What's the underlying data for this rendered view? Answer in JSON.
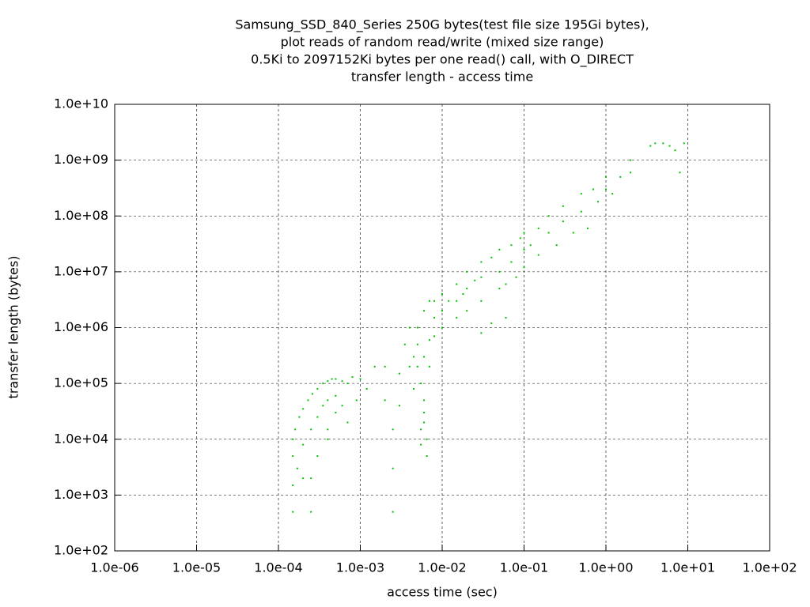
{
  "chart_data": {
    "type": "scatter",
    "title": [
      "Samsung_SSD_840_Series 250G bytes(test file size 195Gi bytes),",
      "plot reads of random read/write (mixed size range)",
      "0.5Ki to 2097152Ki bytes per one read() call, with O_DIRECT",
      "transfer length - access time"
    ],
    "xlabel": "access time (sec)",
    "ylabel": "transfer length (bytes)",
    "xscale": "log",
    "yscale": "log",
    "grid": true,
    "color": "#00c000",
    "xlim": [
      1e-06,
      100
    ],
    "ylim": [
      100,
      10000000000.0
    ],
    "xticks": [
      {
        "value": 1e-06,
        "label": "1.0e-06"
      },
      {
        "value": 1e-05,
        "label": "1.0e-05"
      },
      {
        "value": 0.0001,
        "label": "1.0e-04"
      },
      {
        "value": 0.001,
        "label": "1.0e-03"
      },
      {
        "value": 0.01,
        "label": "1.0e-02"
      },
      {
        "value": 0.1,
        "label": "1.0e-01"
      },
      {
        "value": 1,
        "label": "1.0e+00"
      },
      {
        "value": 10,
        "label": "1.0e+01"
      },
      {
        "value": 100,
        "label": "1.0e+02"
      }
    ],
    "yticks": [
      {
        "value": 100,
        "label": "1.0e+02"
      },
      {
        "value": 1000,
        "label": "1.0e+03"
      },
      {
        "value": 10000,
        "label": "1.0e+04"
      },
      {
        "value": 100000,
        "label": "1.0e+05"
      },
      {
        "value": 1000000,
        "label": "1.0e+06"
      },
      {
        "value": 10000000,
        "label": "1.0e+07"
      },
      {
        "value": 100000000,
        "label": "1.0e+08"
      },
      {
        "value": 1000000000,
        "label": "1.0e+09"
      },
      {
        "value": 10000000000,
        "label": "1.0e+10"
      }
    ],
    "x": [
      4,
      3.5,
      5,
      6,
      9,
      7,
      8,
      2,
      2,
      1,
      1,
      1.5,
      0.7,
      0.5,
      0.5,
      0.3,
      0.3,
      0.2,
      0.2,
      0.15,
      0.1,
      0.1,
      0.1,
      0.07,
      0.07,
      0.05,
      0.05,
      0.05,
      0.03,
      0.03,
      0.03,
      0.02,
      0.02,
      0.02,
      0.015,
      0.015,
      0.015,
      0.01,
      0.01,
      0.01,
      0.008,
      0.008,
      0.008,
      0.06,
      0.08,
      0.15,
      0.25,
      0.4,
      0.6,
      0.06,
      0.04,
      0.03,
      0.8,
      1.2,
      0.12,
      0.09,
      0.04,
      0.025,
      0.012,
      0.018,
      0.005,
      0.005,
      0.005,
      0.0055,
      0.006,
      0.006,
      0.006,
      0.0055,
      0.0065,
      0.006,
      0.007,
      0.007,
      0.0045,
      0.004,
      0.0045,
      0.003,
      0.002,
      0.0035,
      0.004,
      0.006,
      0.007,
      0.0055,
      0.0065,
      0.0025,
      0.003,
      0.0025,
      0.002,
      0.0015,
      0.0025,
      0.00015,
      0.00016,
      0.00018,
      0.0002,
      0.00023,
      0.00026,
      0.0003,
      0.00035,
      0.0004,
      0.00045,
      0.0005,
      0.0006,
      0.0007,
      0.0008,
      0.001,
      0.00015,
      0.00017,
      0.00015,
      0.0002,
      0.00025,
      0.0003,
      0.00035,
      0.0004,
      0.0005,
      0.0005,
      0.0006,
      0.0007,
      0.0004,
      0.0003,
      0.00025,
      0.0002,
      0.00015,
      0.00025,
      0.0009,
      0.0012,
      0.0004
    ],
    "values": [
      2000000000.0,
      1800000000.0,
      2000000000.0,
      1800000000.0,
      2000000000.0,
      1500000000.0,
      600000000.0,
      1000000000.0,
      600000000.0,
      500000000.0,
      300000000.0,
      500000000.0,
      300000000.0,
      250000000.0,
      120000000.0,
      150000000.0,
      80000000.0,
      100000000.0,
      50000000.0,
      60000000.0,
      50000000.0,
      25000000.0,
      12000000.0,
      30000000.0,
      15000000.0,
      25000000.0,
      10000000.0,
      5000000.0,
      15000000.0,
      8000000.0,
      3000000.0,
      10000000.0,
      5000000.0,
      2000000.0,
      6000000.0,
      3000000.0,
      1500000.0,
      4000000.0,
      2000000.0,
      1000000.0,
      3000000.0,
      1500000.0,
      700000.0,
      6000000.0,
      8000000.0,
      20000000.0,
      30000000.0,
      50000000.0,
      60000000.0,
      1500000.0,
      1200000.0,
      800000.0,
      180000000.0,
      250000000.0,
      30000000.0,
      40000000.0,
      18000000.0,
      7000000.0,
      3000000.0,
      4000000.0,
      1000000.0,
      500000.0,
      200000.0,
      100000.0,
      50000.0,
      30000.0,
      20000.0,
      15000.0,
      10000.0,
      300000.0,
      600000.0,
      200000.0,
      300000.0,
      200000.0,
      80000.0,
      150000.0,
      200000.0,
      500000.0,
      1000000.0,
      2000000.0,
      3000000.0,
      8000.0,
      5000.0,
      3000.0,
      40000.0,
      15000.0,
      50000.0,
      200000.0,
      500,
      10000.0,
      15000.0,
      25000.0,
      35000.0,
      50000.0,
      65000.0,
      80000.0,
      100000.0,
      110000.0,
      120000.0,
      120000.0,
      110000.0,
      100000.0,
      130000.0,
      120000.0,
      5000.0,
      3000.0,
      1500.0,
      8000.0,
      15000.0,
      25000.0,
      40000.0,
      50000.0,
      30000.0,
      60000.0,
      40000.0,
      20000.0,
      15000.0,
      5000.0,
      2000.0,
      2000.0,
      500,
      500,
      50000.0,
      80000.0,
      10000.0
    ]
  }
}
